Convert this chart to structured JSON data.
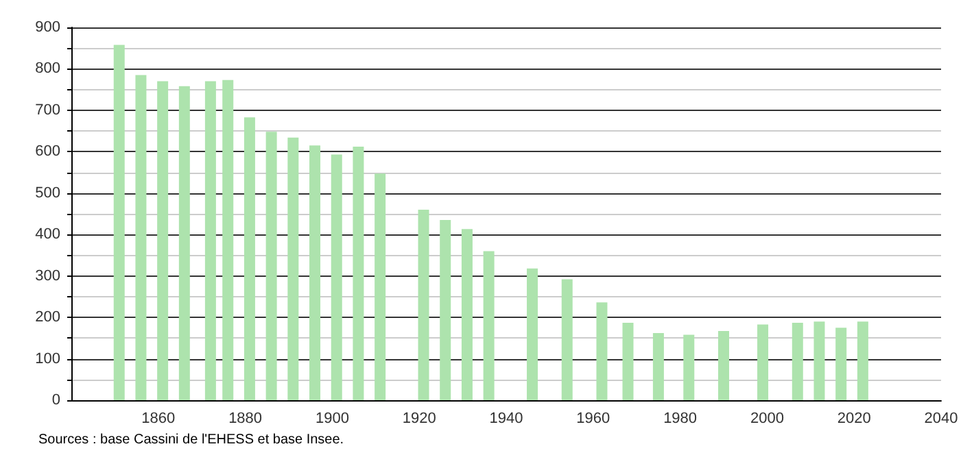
{
  "chart_data": {
    "type": "bar",
    "x": [
      1851,
      1856,
      1861,
      1866,
      1872,
      1876,
      1881,
      1886,
      1891,
      1896,
      1901,
      1906,
      1911,
      1921,
      1926,
      1931,
      1936,
      1946,
      1954,
      1962,
      1968,
      1975,
      1982,
      1990,
      1999,
      2007,
      2012,
      2017,
      2022
    ],
    "values": [
      858,
      785,
      770,
      758,
      770,
      773,
      683,
      648,
      634,
      615,
      593,
      612,
      547,
      460,
      435,
      413,
      360,
      318,
      292,
      236,
      187,
      162,
      158,
      167,
      183,
      187,
      190,
      175,
      190
    ],
    "color": "#ade3ad",
    "xlim": [
      1840,
      2040
    ],
    "xticks": [
      1860,
      1880,
      1900,
      1920,
      1940,
      1960,
      1980,
      2000,
      2020,
      2040
    ],
    "ylim": [
      0,
      900
    ],
    "yticks": [
      0,
      {
        "value": 50,
        "label": null
      },
      100,
      {
        "value": 150,
        "label": null
      },
      200,
      {
        "value": 250,
        "label": null
      },
      300,
      {
        "value": 350,
        "label": null
      },
      400,
      {
        "value": 450,
        "label": null
      },
      500,
      {
        "value": 550,
        "label": null
      },
      600,
      {
        "value": 650,
        "label": null
      },
      700,
      {
        "value": 750,
        "label": null
      },
      800,
      {
        "value": 850,
        "label": null
      },
      900
    ],
    "grid": "y",
    "annotations": [
      "Sources : base Cassini de l'EHESS et base Insee."
    ]
  }
}
